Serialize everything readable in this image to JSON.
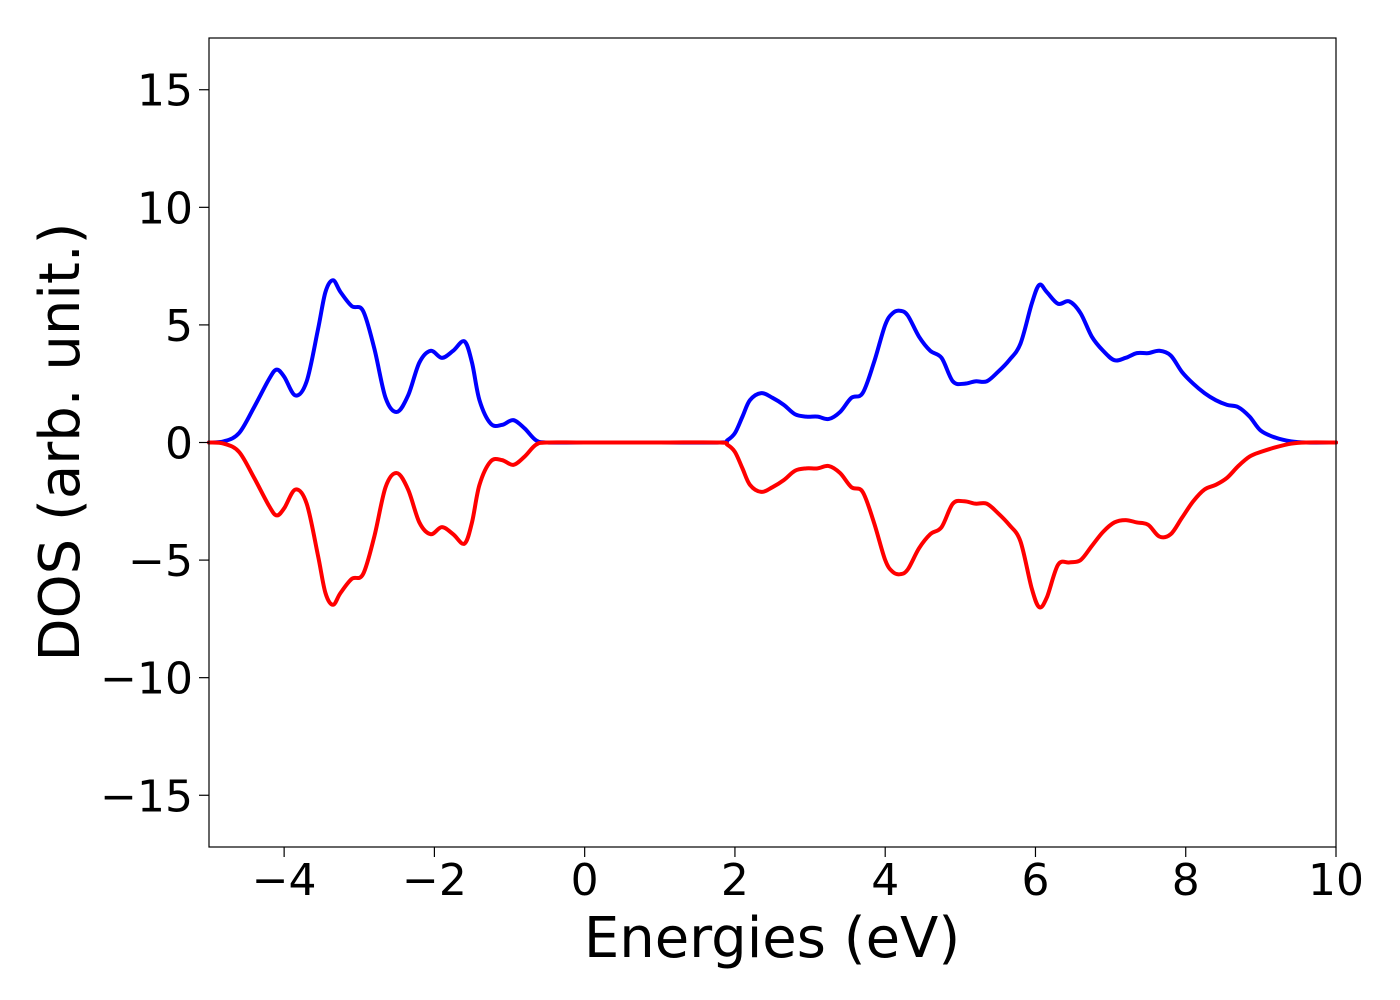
{
  "chart_data": {
    "type": "line",
    "title": "",
    "xlabel": "Energies (eV)",
    "ylabel": "DOS (arb. unit.)",
    "xlim": [
      -5,
      10
    ],
    "ylim": [
      -17.2,
      17.2
    ],
    "grid": false,
    "legend": "none",
    "xticks": [
      -4,
      -2,
      0,
      2,
      4,
      6,
      8,
      10
    ],
    "xtick_labels": [
      "−4",
      "−2",
      "0",
      "2",
      "4",
      "6",
      "8",
      "10"
    ],
    "yticks": [
      15,
      10,
      5,
      0,
      -5,
      -10,
      -15
    ],
    "ytick_labels": [
      "15",
      "10",
      "5",
      "0",
      "−5",
      "−10",
      "−15"
    ],
    "series": [
      {
        "color": "#0000ff",
        "x": [
          -5,
          -4.8,
          -4.6,
          -4.4,
          -4.2,
          -4.1,
          -4.0,
          -3.85,
          -3.7,
          -3.55,
          -3.45,
          -3.35,
          -3.25,
          -3.1,
          -2.95,
          -2.8,
          -2.65,
          -2.5,
          -2.35,
          -2.2,
          -2.05,
          -1.9,
          -1.75,
          -1.6,
          -1.5,
          -1.4,
          -1.25,
          -1.1,
          -0.95,
          -0.8,
          -0.65,
          -0.5,
          0,
          1,
          1.8,
          1.9,
          2.0,
          2.1,
          2.2,
          2.35,
          2.5,
          2.65,
          2.8,
          2.95,
          3.1,
          3.25,
          3.4,
          3.55,
          3.7,
          3.85,
          4.0,
          4.1,
          4.2,
          4.3,
          4.45,
          4.6,
          4.75,
          4.9,
          5.05,
          5.2,
          5.35,
          5.5,
          5.65,
          5.8,
          5.95,
          6.05,
          6.15,
          6.3,
          6.45,
          6.6,
          6.75,
          6.9,
          7.05,
          7.2,
          7.35,
          7.5,
          7.65,
          7.8,
          7.95,
          8.1,
          8.25,
          8.4,
          8.55,
          8.7,
          8.85,
          9.0,
          9.2,
          9.4,
          9.6,
          10
        ],
        "y": [
          0.0,
          0.05,
          0.4,
          1.5,
          2.7,
          3.1,
          2.8,
          2.0,
          2.6,
          4.8,
          6.4,
          6.9,
          6.4,
          5.8,
          5.6,
          4.0,
          1.9,
          1.3,
          2.0,
          3.4,
          3.9,
          3.6,
          3.9,
          4.3,
          3.4,
          1.8,
          0.8,
          0.75,
          0.95,
          0.6,
          0.1,
          0.0,
          0.0,
          0.0,
          0.0,
          0.1,
          0.4,
          1.1,
          1.8,
          2.1,
          1.9,
          1.6,
          1.2,
          1.1,
          1.1,
          1.0,
          1.3,
          1.9,
          2.1,
          3.4,
          5.0,
          5.5,
          5.6,
          5.4,
          4.5,
          3.9,
          3.6,
          2.6,
          2.5,
          2.6,
          2.6,
          3.0,
          3.5,
          4.2,
          5.9,
          6.7,
          6.4,
          5.9,
          6.0,
          5.5,
          4.5,
          3.9,
          3.5,
          3.6,
          3.8,
          3.8,
          3.9,
          3.7,
          3.0,
          2.5,
          2.1,
          1.8,
          1.6,
          1.5,
          1.1,
          0.5,
          0.2,
          0.05,
          0.0,
          0.0
        ]
      },
      {
        "color": "#ff0000",
        "x": [
          -5,
          -4.8,
          -4.6,
          -4.4,
          -4.2,
          -4.1,
          -4.0,
          -3.85,
          -3.7,
          -3.55,
          -3.45,
          -3.35,
          -3.25,
          -3.1,
          -2.95,
          -2.8,
          -2.65,
          -2.5,
          -2.35,
          -2.2,
          -2.05,
          -1.9,
          -1.75,
          -1.6,
          -1.5,
          -1.4,
          -1.25,
          -1.1,
          -0.95,
          -0.8,
          -0.65,
          -0.5,
          0,
          1,
          1.8,
          1.9,
          2.0,
          2.1,
          2.2,
          2.35,
          2.5,
          2.65,
          2.8,
          2.95,
          3.1,
          3.25,
          3.4,
          3.55,
          3.7,
          3.85,
          4.0,
          4.1,
          4.2,
          4.3,
          4.45,
          4.6,
          4.75,
          4.9,
          5.05,
          5.2,
          5.35,
          5.5,
          5.65,
          5.8,
          5.95,
          6.05,
          6.15,
          6.3,
          6.45,
          6.6,
          6.75,
          6.9,
          7.05,
          7.2,
          7.35,
          7.5,
          7.65,
          7.8,
          7.95,
          8.1,
          8.25,
          8.4,
          8.55,
          8.7,
          8.85,
          9.0,
          9.2,
          9.4,
          9.6,
          10
        ],
        "y": [
          0.0,
          -0.05,
          -0.4,
          -1.5,
          -2.7,
          -3.1,
          -2.8,
          -2.0,
          -2.6,
          -4.8,
          -6.4,
          -6.9,
          -6.4,
          -5.8,
          -5.6,
          -4.0,
          -1.9,
          -1.3,
          -2.0,
          -3.4,
          -3.9,
          -3.6,
          -3.9,
          -4.3,
          -3.4,
          -1.8,
          -0.8,
          -0.75,
          -0.95,
          -0.6,
          -0.1,
          0.0,
          0.0,
          0.0,
          0.0,
          -0.1,
          -0.4,
          -1.1,
          -1.8,
          -2.1,
          -1.9,
          -1.6,
          -1.2,
          -1.1,
          -1.1,
          -1.0,
          -1.3,
          -1.9,
          -2.1,
          -3.4,
          -5.0,
          -5.5,
          -5.6,
          -5.4,
          -4.5,
          -3.9,
          -3.6,
          -2.6,
          -2.5,
          -2.6,
          -2.6,
          -3.0,
          -3.5,
          -4.2,
          -6.2,
          -7.0,
          -6.6,
          -5.2,
          -5.1,
          -5.0,
          -4.4,
          -3.8,
          -3.4,
          -3.3,
          -3.4,
          -3.5,
          -4.0,
          -3.9,
          -3.2,
          -2.5,
          -2.0,
          -1.8,
          -1.5,
          -1.0,
          -0.6,
          -0.4,
          -0.2,
          -0.05,
          0.0,
          0.0
        ]
      }
    ]
  }
}
